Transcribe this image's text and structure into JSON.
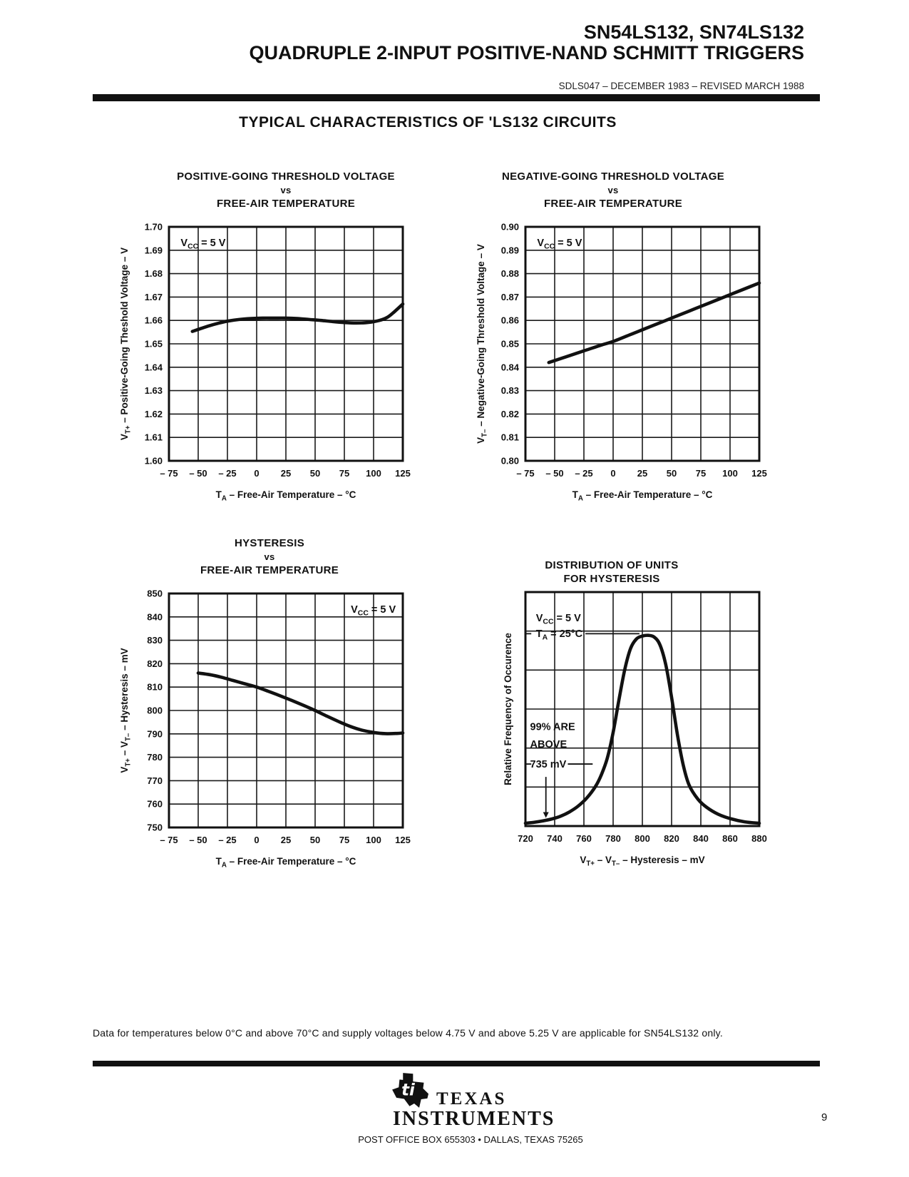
{
  "header": {
    "part_numbers": "SN54LS132, SN74LS132",
    "title": "QUADRUPLE 2-INPUT POSITIVE-NAND SCHMITT TRIGGERS",
    "doc_info": "SDLS047 – DECEMBER 1983 – REVISED MARCH 1988"
  },
  "section_title": "TYPICAL CHARACTERISTICS OF 'LS132 CIRCUITS",
  "footnote": "Data for temperatures below 0°C and above 70°C and supply voltages below 4.75 V and above 5.25 V are applicable for SN54LS132 only.",
  "footer": {
    "brand_line1": "TEXAS",
    "brand_line2": "INSTRUMENTS",
    "logo_monogram": "ti",
    "address": "POST OFFICE BOX 655303 • DALLAS, TEXAS 75265",
    "page_number": "9"
  },
  "ink_color": "#111111",
  "chart_data": [
    {
      "name": "positive-going-threshold-voltage",
      "type": "line",
      "title_lines": [
        "POSITIVE-GOING THRESHOLD VOLTAGE",
        "vs",
        "FREE-AIR TEMPERATURE"
      ],
      "xlabel": "T_{A} – Free-Air Temperature – °C",
      "ylabel": "V_{T+} – Positive-Going Theshold Voltage – V",
      "xlim": [
        -75,
        125
      ],
      "ylim": [
        1.6,
        1.7
      ],
      "xticks": [
        -75,
        -50,
        -25,
        0,
        25,
        50,
        75,
        100,
        125
      ],
      "xtick_labels": [
        "– 75",
        "– 50",
        "– 25",
        "0",
        "25",
        "50",
        "75",
        "100",
        "125"
      ],
      "yticks": [
        1.7,
        1.69,
        1.68,
        1.67,
        1.66,
        1.65,
        1.64,
        1.63,
        1.62,
        1.61,
        1.6
      ],
      "ytick_labels": [
        "1.70",
        "1.69",
        "1.68",
        "1.67",
        "1.66",
        "1.65",
        "1.64",
        "1.63",
        "1.62",
        "1.61",
        "1.60"
      ],
      "grid": true,
      "annotations": [
        {
          "text": "V_{CC} = 5 V",
          "fx": 0.05,
          "fy": 0.082
        }
      ],
      "series": [
        {
          "name": "VT+ typical",
          "x": [
            -55,
            -48,
            -40,
            -32,
            -25,
            -15,
            -5,
            5,
            15,
            25,
            35,
            45,
            55,
            65,
            75,
            85,
            95,
            105,
            112,
            118,
            125
          ],
          "y": [
            1.6553,
            1.6565,
            1.6578,
            1.6589,
            1.6597,
            1.6604,
            1.6608,
            1.661,
            1.661,
            1.661,
            1.6608,
            1.6604,
            1.66,
            1.6595,
            1.6591,
            1.6589,
            1.6591,
            1.66,
            1.6614,
            1.6638,
            1.667
          ]
        }
      ]
    },
    {
      "name": "negative-going-threshold-voltage",
      "type": "line",
      "title_lines": [
        "NEGATIVE-GOING THRESHOLD VOLTAGE",
        "vs",
        "FREE-AIR TEMPERATURE"
      ],
      "xlabel": "T_{A} – Free-Air Temperature – °C",
      "ylabel": "V_{T–} – Negative-Going Threshold Voltage – V",
      "xlim": [
        -75,
        125
      ],
      "ylim": [
        0.8,
        0.9
      ],
      "xticks": [
        -75,
        -50,
        -25,
        0,
        25,
        50,
        75,
        100,
        125
      ],
      "xtick_labels": [
        "– 75",
        "– 50",
        "– 25",
        "0",
        "25",
        "50",
        "75",
        "100",
        "125"
      ],
      "yticks": [
        0.9,
        0.89,
        0.88,
        0.87,
        0.86,
        0.85,
        0.84,
        0.83,
        0.82,
        0.81,
        0.8
      ],
      "ytick_labels": [
        "0.90",
        "0.89",
        "0.88",
        "0.87",
        "0.86",
        "0.85",
        "0.84",
        "0.83",
        "0.82",
        "0.81",
        "0.80"
      ],
      "grid": true,
      "annotations": [
        {
          "text": "V_{CC} = 5 V",
          "fx": 0.05,
          "fy": 0.082
        }
      ],
      "series": [
        {
          "name": "VT- typical",
          "x": [
            -55,
            -40,
            -25,
            -10,
            0,
            15,
            25,
            40,
            50,
            65,
            75,
            90,
            100,
            110,
            125
          ],
          "y": [
            0.842,
            0.8445,
            0.847,
            0.8495,
            0.851,
            0.854,
            0.856,
            0.859,
            0.861,
            0.864,
            0.866,
            0.869,
            0.871,
            0.873,
            0.876
          ]
        }
      ]
    },
    {
      "name": "hysteresis-vs-temperature",
      "type": "line",
      "title_lines": [
        "HYSTERESIS",
        "vs",
        "FREE-AIR TEMPERATURE"
      ],
      "xlabel": "T_{A} – Free-Air Temperature – °C",
      "ylabel": "V_{T+} – V_{T–} – Hysteresis – mV",
      "xlim": [
        -75,
        125
      ],
      "ylim": [
        750,
        850
      ],
      "xticks": [
        -75,
        -50,
        -25,
        0,
        25,
        50,
        75,
        100,
        125
      ],
      "xtick_labels": [
        "– 75",
        "– 50",
        "– 25",
        "0",
        "25",
        "50",
        "75",
        "100",
        "125"
      ],
      "yticks": [
        850,
        840,
        830,
        820,
        810,
        800,
        790,
        780,
        770,
        760,
        750
      ],
      "ytick_labels": [
        "850",
        "840",
        "830",
        "820",
        "810",
        "800",
        "790",
        "780",
        "770",
        "760",
        "750"
      ],
      "grid": true,
      "annotations": [
        {
          "text": "V_{CC} = 5 V",
          "fx": 0.97,
          "fy": 0.082,
          "anchor": "end"
        }
      ],
      "series": [
        {
          "name": "hysteresis typical",
          "x": [
            -50,
            -40,
            -30,
            -20,
            -10,
            0,
            10,
            20,
            30,
            40,
            50,
            60,
            70,
            80,
            90,
            100,
            110,
            120,
            125
          ],
          "y": [
            816,
            815.3,
            814.2,
            812.8,
            811.4,
            810,
            808.2,
            806.3,
            804.3,
            802.2,
            800,
            797.6,
            795.3,
            793.2,
            791.6,
            790.6,
            790.1,
            790.2,
            790.4
          ]
        }
      ]
    },
    {
      "name": "hysteresis-distribution",
      "type": "area",
      "title_lines": [
        "DISTRIBUTION OF UNITS",
        "FOR HYSTERESIS"
      ],
      "xlabel": "V_{T+} – V_{T–} – Hysteresis – mV",
      "ylabel": "Relative Frequency of Occurence",
      "xlim": [
        720,
        880
      ],
      "ylim": [
        0,
        1
      ],
      "xticks": [
        720,
        740,
        760,
        780,
        800,
        820,
        840,
        860,
        880
      ],
      "xtick_labels": [
        "720",
        "740",
        "760",
        "780",
        "800",
        "820",
        "840",
        "860",
        "880"
      ],
      "grid_rows": 6,
      "grid": true,
      "annotations": [
        {
          "text": "V_{CC} = 5 V",
          "fx": 0.045,
          "fy": 0.125
        },
        {
          "text": "T_{A} = 25°C",
          "fx": 0.045,
          "fy": 0.192
        },
        {
          "text": "99% ARE",
          "fx": 0.02,
          "fy": 0.59
        },
        {
          "text": "ABOVE",
          "fx": 0.02,
          "fy": 0.665
        },
        {
          "text": "735 mV",
          "fx": 0.02,
          "fy": 0.75
        }
      ],
      "extras": [
        {
          "type": "hline",
          "x1": 720,
          "x2": 724,
          "fy": 0.178
        },
        {
          "type": "hline",
          "x1": 761,
          "x2": 798,
          "fy": 0.178
        },
        {
          "type": "hline",
          "x1": 720,
          "x2": 724,
          "fy": 0.735
        },
        {
          "type": "hline",
          "x1": 749,
          "x2": 766,
          "fy": 0.735
        },
        {
          "type": "arrow",
          "x": 734,
          "fy1": 0.79,
          "fy2": 0.965
        }
      ],
      "series": [
        {
          "name": "relative frequency",
          "x": [
            720,
            726,
            732,
            738,
            744,
            750,
            756,
            762,
            768,
            772,
            776,
            780,
            784,
            788,
            792,
            796,
            800,
            804,
            808,
            812,
            816,
            820,
            824,
            828,
            832,
            838,
            844,
            852,
            860,
            870,
            880
          ],
          "y": [
            0.012,
            0.016,
            0.022,
            0.03,
            0.042,
            0.06,
            0.085,
            0.12,
            0.17,
            0.22,
            0.29,
            0.4,
            0.54,
            0.67,
            0.76,
            0.8,
            0.812,
            0.815,
            0.808,
            0.775,
            0.69,
            0.55,
            0.39,
            0.26,
            0.175,
            0.115,
            0.08,
            0.05,
            0.032,
            0.018,
            0.012
          ]
        }
      ]
    }
  ]
}
